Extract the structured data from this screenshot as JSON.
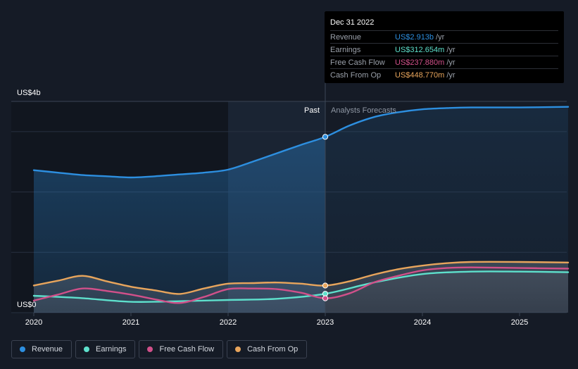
{
  "colors": {
    "revenue": "#2d8fe0",
    "earnings": "#5ee0cc",
    "free_cash_flow": "#d1508a",
    "cash_from_op": "#e8a55c"
  },
  "tooltip": {
    "date": "Dec 31 2022",
    "rows": [
      {
        "label": "Revenue",
        "value": "US$2.913b",
        "unit": "/yr"
      },
      {
        "label": "Earnings",
        "value": "US$312.654m",
        "unit": "/yr"
      },
      {
        "label": "Free Cash Flow",
        "value": "US$237.880m",
        "unit": "/yr"
      },
      {
        "label": "Cash From Op",
        "value": "US$448.770m",
        "unit": "/yr"
      }
    ]
  },
  "legend": [
    {
      "label": "Revenue"
    },
    {
      "label": "Earnings"
    },
    {
      "label": "Free Cash Flow"
    },
    {
      "label": "Cash From Op"
    }
  ],
  "chart_data": {
    "type": "line",
    "y_axis_labels": [
      "US$4b",
      "US$0"
    ],
    "ylim": [
      0,
      3.5
    ],
    "xlim": [
      2019.9,
      2025.5
    ],
    "x_ticks": [
      "2020",
      "2021",
      "2022",
      "2023",
      "2024",
      "2025"
    ],
    "past_label": "Past",
    "forecast_label": "Analysts Forecasts",
    "divider_x": 2023.0,
    "highlight_start_x": 2022.0,
    "grid": true,
    "series": [
      {
        "name": "Revenue",
        "x": [
          2020.0,
          2020.25,
          2020.5,
          2020.75,
          2021.0,
          2021.25,
          2021.5,
          2021.75,
          2022.0,
          2022.25,
          2022.5,
          2022.75,
          2023.0,
          2023.25,
          2023.5,
          2023.75,
          2024.0,
          2024.25,
          2024.5,
          2025.0,
          2025.5
        ],
        "values": [
          2.36,
          2.32,
          2.28,
          2.26,
          2.24,
          2.26,
          2.29,
          2.32,
          2.37,
          2.5,
          2.64,
          2.78,
          2.913,
          3.1,
          3.24,
          3.32,
          3.37,
          3.39,
          3.4,
          3.4,
          3.41
        ]
      },
      {
        "name": "Earnings",
        "x": [
          2020.0,
          2020.5,
          2021.0,
          2021.5,
          2022.0,
          2022.5,
          2023.0,
          2023.5,
          2024.0,
          2024.5,
          2025.0,
          2025.5
        ],
        "values": [
          0.28,
          0.24,
          0.18,
          0.19,
          0.21,
          0.23,
          0.313,
          0.5,
          0.64,
          0.68,
          0.68,
          0.67
        ]
      },
      {
        "name": "Free Cash Flow",
        "x": [
          2020.0,
          2020.25,
          2020.5,
          2020.75,
          2021.0,
          2021.25,
          2021.5,
          2021.75,
          2022.0,
          2022.25,
          2022.5,
          2022.75,
          2023.0,
          2023.25,
          2023.5,
          2023.75,
          2024.0,
          2024.25,
          2024.5,
          2025.0,
          2025.5
        ],
        "values": [
          0.2,
          0.3,
          0.4,
          0.36,
          0.3,
          0.22,
          0.16,
          0.26,
          0.39,
          0.4,
          0.39,
          0.33,
          0.238,
          0.32,
          0.5,
          0.61,
          0.7,
          0.74,
          0.75,
          0.74,
          0.73
        ]
      },
      {
        "name": "Cash From Op",
        "x": [
          2020.0,
          2020.25,
          2020.5,
          2020.75,
          2021.0,
          2021.25,
          2021.5,
          2021.75,
          2022.0,
          2022.25,
          2022.5,
          2022.75,
          2023.0,
          2023.25,
          2023.5,
          2023.75,
          2024.0,
          2024.25,
          2024.5,
          2025.0,
          2025.5
        ],
        "values": [
          0.45,
          0.53,
          0.61,
          0.52,
          0.43,
          0.37,
          0.31,
          0.4,
          0.48,
          0.49,
          0.5,
          0.48,
          0.449,
          0.52,
          0.63,
          0.72,
          0.78,
          0.82,
          0.84,
          0.84,
          0.83
        ]
      }
    ]
  }
}
